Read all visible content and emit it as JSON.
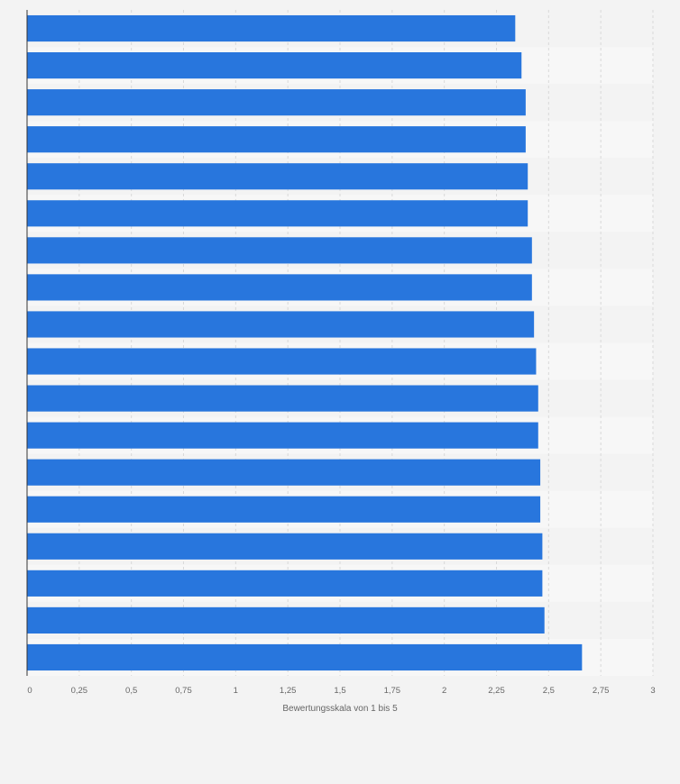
{
  "chart_data": {
    "type": "bar",
    "orientation": "horizontal",
    "xlabel": "Bewertungsskala von 1 bis 5",
    "xlim": [
      0,
      3
    ],
    "x_ticks": [
      0,
      0.25,
      0.5,
      0.75,
      1,
      1.25,
      1.5,
      1.75,
      2,
      2.25,
      2.5,
      2.75,
      3
    ],
    "x_tick_labels": [
      "0",
      "0,25",
      "0,5",
      "0,75",
      "1",
      "1,25",
      "1,5",
      "1,75",
      "2",
      "2,25",
      "2,5",
      "2,75",
      "3"
    ],
    "values": [
      2.34,
      2.37,
      2.39,
      2.39,
      2.4,
      2.4,
      2.42,
      2.42,
      2.43,
      2.44,
      2.45,
      2.45,
      2.46,
      2.46,
      2.47,
      2.47,
      2.48,
      2.66
    ],
    "grid": true,
    "colors": {
      "bar": "#2876dd",
      "background": "#f3f3f3",
      "band_alt": "#f7f7f7",
      "grid": "#d9d9d9",
      "axis": "#333333"
    }
  }
}
